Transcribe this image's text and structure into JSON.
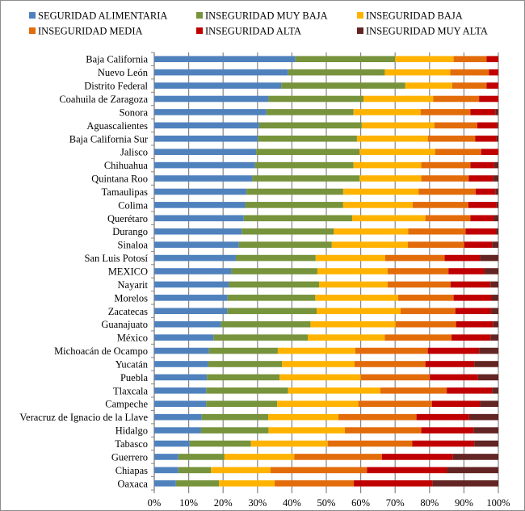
{
  "chart_data": {
    "type": "bar",
    "orientation": "horizontal",
    "stacked": "percent",
    "title": "",
    "xlabel": "",
    "ylabel": "",
    "xlim": [
      0,
      100
    ],
    "x_ticks": [
      "0%",
      "10%",
      "20%",
      "30%",
      "40%",
      "50%",
      "60%",
      "70%",
      "80%",
      "90%",
      "100%"
    ],
    "grid": "vertical",
    "legend_position": "top",
    "categories": [
      "Baja California",
      "Nuevo León",
      "Distrito Federal",
      "Coahuila de Zaragoza",
      "Sonora",
      "Aguascalientes",
      "Baja California Sur",
      "Jalisco",
      "Chihuahua",
      "Quintana Roo",
      "Tamaulipas",
      "Colima",
      "Querétaro",
      "Durango",
      "Sinaloa",
      "San Luis Potosí",
      "MEXICO",
      "Nayarit",
      "Morelos",
      "Zacatecas",
      "Guanajuato",
      "México",
      "Michoacán de Ocampo",
      "Yucatán",
      "Puebla",
      "Tlaxcala",
      "Campeche",
      "Veracruz de Ignacio de la Llave",
      "Hidalgo",
      "Tabasco",
      "Guerrero",
      "Chiapas",
      "Oaxaca"
    ],
    "series": [
      {
        "name": "SEGURIDAD ALIMENTARIA",
        "color": "#4F81BD",
        "values": [
          41.0,
          38.9,
          36.9,
          33.2,
          32.6,
          30.5,
          30.1,
          29.6,
          29.3,
          28.5,
          26.8,
          26.4,
          26.0,
          25.4,
          24.6,
          23.7,
          22.4,
          21.7,
          21.3,
          21.2,
          19.4,
          17.2,
          15.9,
          15.7,
          15.3,
          15.1,
          15.1,
          13.8,
          13.6,
          10.3,
          7.0,
          7.0,
          6.3
        ]
      },
      {
        "name": "INSEGURIDAD MUY BAJA",
        "color": "#77933C",
        "values": [
          29.0,
          28.1,
          36.0,
          27.6,
          25.3,
          29.8,
          28.8,
          30.1,
          28.6,
          31.2,
          28.1,
          28.5,
          31.5,
          26.8,
          27.0,
          23.2,
          25.0,
          26.2,
          25.5,
          26.0,
          26.0,
          27.4,
          20.0,
          21.4,
          21.1,
          23.8,
          20.6,
          19.3,
          19.6,
          17.8,
          13.4,
          9.5,
          12.5
        ]
      },
      {
        "name": "INSEGURIDAD BAJA",
        "color": "#FFB300",
        "values": [
          17.0,
          19.0,
          13.7,
          20.3,
          19.5,
          21.1,
          20.6,
          21.9,
          19.7,
          17.9,
          21.9,
          20.2,
          21.3,
          21.6,
          22.1,
          20.2,
          20.4,
          19.9,
          24.1,
          24.4,
          24.7,
          22.4,
          22.5,
          21.1,
          23.6,
          26.8,
          23.6,
          20.4,
          22.2,
          22.3,
          20.3,
          17.3,
          16.2
        ]
      },
      {
        "name": "INSEGURIDAD MEDIA",
        "color": "#E36C0A",
        "values": [
          9.6,
          11.3,
          10.0,
          13.3,
          14.5,
          12.5,
          13.8,
          13.4,
          14.3,
          13.8,
          16.6,
          16.2,
          13.1,
          16.7,
          16.4,
          17.3,
          17.7,
          18.3,
          16.1,
          15.9,
          17.6,
          19.4,
          21.1,
          20.6,
          20.1,
          19.3,
          21.4,
          22.7,
          22.2,
          24.6,
          25.5,
          28.0,
          23.0
        ]
      },
      {
        "name": "INSEGURIDAD ALTA",
        "color": "#C00000",
        "values": [
          3.4,
          2.7,
          3.4,
          5.6,
          7.2,
          5.8,
          6.2,
          5.0,
          6.9,
          7.1,
          5.7,
          8.2,
          6.8,
          8.8,
          8.1,
          10.3,
          10.5,
          11.6,
          11.0,
          10.4,
          10.7,
          11.3,
          14.9,
          14.2,
          14.0,
          13.2,
          14.0,
          15.3,
          15.2,
          18.0,
          20.6,
          23.3,
          22.9
        ]
      },
      {
        "name": "INSEGURIDAD MUY ALTA",
        "color": "#632523",
        "values": [
          0,
          0,
          0,
          0,
          0.9,
          0.3,
          0.5,
          0,
          1.2,
          1.5,
          0.9,
          0.5,
          1.3,
          0.7,
          1.8,
          5.3,
          4.0,
          2.3,
          2.0,
          2.1,
          1.6,
          2.3,
          5.6,
          7.0,
          5.9,
          1.8,
          5.3,
          8.5,
          7.2,
          7.0,
          13.2,
          14.9,
          19.1
        ]
      }
    ]
  }
}
